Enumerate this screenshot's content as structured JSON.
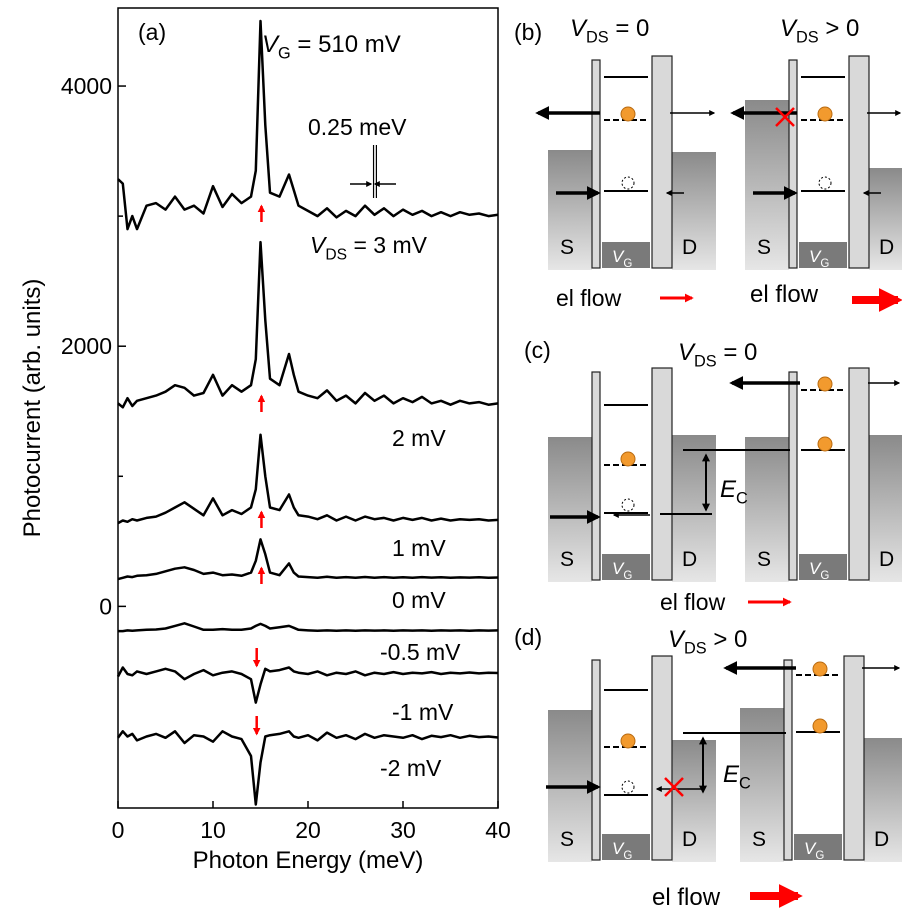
{
  "chart_data": {
    "type": "line",
    "panel_label": "(a)",
    "xlabel": "Photon Energy (meV)",
    "ylabel": "Photocurrent (arb. units)",
    "gate_label": {
      "v": "V",
      "sub": "G",
      "rest": " = 510 mV"
    },
    "bias_label": {
      "v": "V",
      "sub": "DS",
      "eq": " = "
    },
    "resolution": "0.25 meV",
    "xlim": [
      0,
      40
    ],
    "xticks": [
      0,
      10,
      20,
      30,
      40
    ],
    "ylim": [
      -1550,
      4600
    ],
    "yticks": [
      0,
      2000,
      4000
    ],
    "yminorticks": [
      1000,
      3000
    ],
    "color": "#000000",
    "marker_color": "#ff0000",
    "x": [
      0,
      0.5,
      1,
      1.5,
      2,
      3,
      4,
      5,
      6,
      7,
      8,
      9,
      10,
      11,
      12,
      13,
      14,
      14.5,
      15,
      15.5,
      16,
      17,
      18,
      18.5,
      19,
      20,
      21,
      22,
      23,
      24,
      25,
      26,
      27,
      28,
      29,
      30,
      31,
      32,
      33,
      34,
      35,
      36,
      37,
      38,
      39,
      40
    ],
    "series": [
      {
        "name": "3 mV",
        "values": [
          3285,
          3250,
          2900,
          3000,
          2900,
          3080,
          3100,
          3050,
          3150,
          3050,
          3080,
          3020,
          3230,
          3070,
          3170,
          3100,
          3150,
          3350,
          4500,
          3700,
          3180,
          3150,
          3320,
          3200,
          3080,
          3040,
          3000,
          3060,
          2990,
          3040,
          3000,
          3080,
          3010,
          3060,
          3000,
          3050,
          3010,
          3040,
          3000,
          3030,
          3000,
          3030,
          3010,
          3020,
          3000,
          3010
        ]
      },
      {
        "name": "2 mV",
        "values": [
          1560,
          1530,
          1600,
          1540,
          1580,
          1600,
          1620,
          1650,
          1700,
          1680,
          1620,
          1640,
          1780,
          1620,
          1700,
          1650,
          1700,
          1900,
          2800,
          2200,
          1750,
          1700,
          1940,
          1780,
          1650,
          1620,
          1600,
          1660,
          1580,
          1620,
          1560,
          1640,
          1580,
          1620,
          1560,
          1600,
          1570,
          1610,
          1560,
          1580,
          1550,
          1580,
          1560,
          1570,
          1550,
          1560
        ]
      },
      {
        "name": "1 mV",
        "values": [
          640,
          660,
          650,
          670,
          660,
          680,
          690,
          720,
          760,
          800,
          750,
          700,
          830,
          700,
          740,
          710,
          760,
          900,
          1320,
          1000,
          760,
          740,
          860,
          760,
          700,
          690,
          670,
          700,
          660,
          690,
          660,
          690,
          670,
          680,
          660,
          680,
          665,
          680,
          660,
          675,
          660,
          670,
          665,
          670,
          660,
          665
        ]
      },
      {
        "name": "0 mV",
        "values": [
          210,
          220,
          230,
          225,
          235,
          240,
          250,
          270,
          290,
          300,
          280,
          250,
          260,
          240,
          245,
          235,
          260,
          350,
          515,
          400,
          260,
          240,
          330,
          260,
          230,
          225,
          220,
          228,
          220,
          225,
          220,
          226,
          220,
          225,
          220,
          224,
          220,
          225,
          221,
          224,
          220,
          223,
          221,
          224,
          220,
          222
        ]
      },
      {
        "name": "-0.5 mV",
        "values": [
          -190,
          -190,
          -185,
          -188,
          -185,
          -180,
          -178,
          -170,
          -150,
          -130,
          -155,
          -180,
          -180,
          -175,
          -180,
          -180,
          -170,
          -150,
          -135,
          -150,
          -170,
          -160,
          -150,
          -165,
          -180,
          -185,
          -188,
          -185,
          -187,
          -185,
          -188,
          -185,
          -186,
          -185,
          -188,
          -185,
          -186,
          -185,
          -187,
          -185,
          -186,
          -185,
          -187,
          -185,
          -186,
          -185
        ]
      },
      {
        "name": "-1 mV",
        "values": [
          -540,
          -470,
          -520,
          -530,
          -500,
          -520,
          -500,
          -480,
          -500,
          -560,
          -520,
          -490,
          -530,
          -510,
          -500,
          -520,
          -560,
          -740,
          -600,
          -480,
          -500,
          -490,
          -470,
          -500,
          -510,
          -520,
          -500,
          -530,
          -510,
          -520,
          -500,
          -530,
          -510,
          -520,
          -505,
          -520,
          -510,
          -515,
          -505,
          -520,
          -510,
          -515,
          -508,
          -515,
          -510,
          -512
        ]
      },
      {
        "name": "-2 mV",
        "values": [
          -1010,
          -960,
          -1000,
          -980,
          -1030,
          -1000,
          -980,
          -1010,
          -960,
          -1050,
          -990,
          -1000,
          -1040,
          -960,
          -1000,
          -1020,
          -1150,
          -1523,
          -1200,
          -1000,
          -990,
          -980,
          -960,
          -1000,
          -1010,
          -990,
          -1030,
          -970,
          -1010,
          -990,
          -1020,
          -980,
          -1010,
          -990,
          -1000,
          -1010,
          -990,
          -1020,
          -995,
          -1005,
          -990,
          -1010,
          -995,
          -1005,
          -1000,
          -1008
        ]
      }
    ]
  },
  "source": "S",
  "drain": "D",
  "gate": {
    "v": "V",
    "sub": "G"
  },
  "panels": [
    {
      "label": "(b)",
      "columns": [
        {
          "heading": {
            "v": "V",
            "sub": "DS",
            "rel": " = 0"
          },
          "flow": "el flow"
        },
        {
          "heading": {
            "v": "V",
            "sub": "DS",
            "rel": " > 0"
          },
          "flow": "el flow"
        }
      ]
    },
    {
      "label": "(c)",
      "heading": {
        "v": "V",
        "sub": "DS",
        "rel": " = 0"
      },
      "flow": "el flow",
      "energy": {
        "v": "E",
        "sub": "C"
      }
    },
    {
      "label": "(d)",
      "heading": {
        "v": "V",
        "sub": "DS",
        "rel": " > 0"
      },
      "flow": "el flow",
      "energy": {
        "v": "E",
        "sub": "C"
      }
    }
  ]
}
